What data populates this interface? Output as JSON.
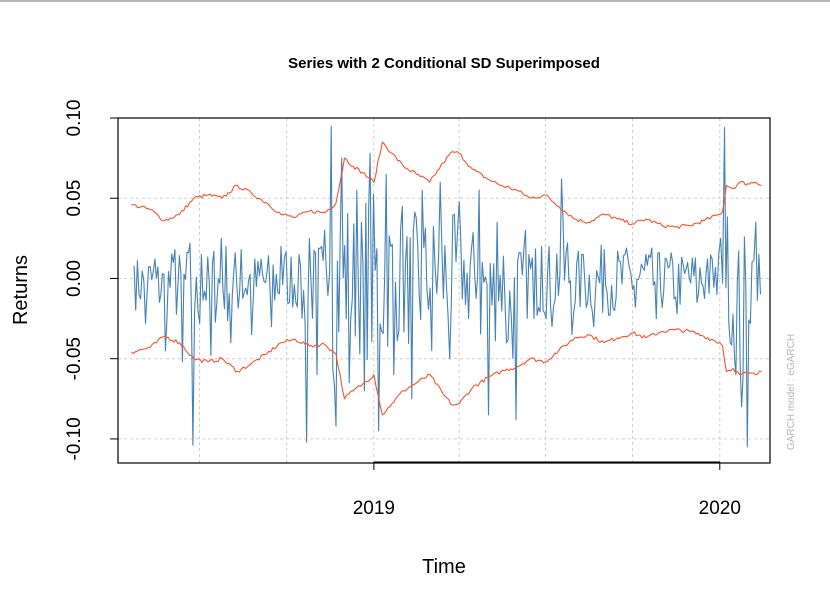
{
  "chart_data": {
    "type": "line",
    "title": "Series with 2 Conditional SD Superimposed",
    "xlabel": "Time",
    "ylabel": "Returns",
    "watermark": "GARCH model : eGARCH",
    "xlim": [
      "2018-04-06",
      "2020-02-23"
    ],
    "ylim": [
      -0.115,
      0.1
    ],
    "x_ticks": [
      {
        "date": "2019-01-01",
        "label": "2019"
      },
      {
        "date": "2020-01-01",
        "label": "2020"
      }
    ],
    "y_ticks": [
      {
        "value": 0.1,
        "label": "0.10"
      },
      {
        "value": 0.05,
        "label": "0.05"
      },
      {
        "value": 0.0,
        "label": "0.00"
      },
      {
        "value": -0.05,
        "label": "-0.05"
      },
      {
        "value": -0.1,
        "label": "-0.10"
      }
    ],
    "grid": true,
    "grid_x_dates": [
      "2018-07-01",
      "2018-10-01",
      "2019-01-01",
      "2019-04-01",
      "2019-07-01",
      "2019-10-01",
      "2020-01-01"
    ],
    "series": [
      {
        "role": "returns",
        "color": "#4682b4",
        "x": [
          "2018-04-23",
          "2018-05-05",
          "2018-05-15",
          "2018-05-26",
          "2018-06-05",
          "2018-06-13",
          "2018-06-21",
          "2018-06-24",
          "2018-07-03",
          "2018-07-13",
          "2018-07-24",
          "2018-08-03",
          "2018-08-14",
          "2018-08-25",
          "2018-09-04",
          "2018-09-15",
          "2018-09-25",
          "2018-10-04",
          "2018-10-14",
          "2018-10-22",
          "2018-10-25",
          "2018-11-02",
          "2018-11-10",
          "2018-11-17",
          "2018-11-22",
          "2018-11-28",
          "2018-12-06",
          "2018-12-14",
          "2018-12-22",
          "2018-12-28",
          "2019-01-06",
          "2019-01-14",
          "2019-01-22",
          "2019-01-31",
          "2019-02-10",
          "2019-02-21",
          "2019-03-03",
          "2019-03-12",
          "2019-03-22",
          "2019-04-01",
          "2019-04-11",
          "2019-04-22",
          "2019-05-02",
          "2019-05-11",
          "2019-05-21",
          "2019-05-31",
          "2019-06-10",
          "2019-06-19",
          "2019-06-27",
          "2019-07-08",
          "2019-07-18",
          "2019-07-29",
          "2019-08-10",
          "2019-08-21",
          "2019-09-01",
          "2019-09-12",
          "2019-09-23",
          "2019-10-04",
          "2019-10-15",
          "2019-10-26",
          "2019-11-06",
          "2019-11-17",
          "2019-11-28",
          "2019-12-08",
          "2019-12-19",
          "2019-12-29",
          "2020-01-02",
          "2020-01-06",
          "2020-01-12",
          "2020-01-18",
          "2020-01-24",
          "2020-01-30",
          "2020-02-04",
          "2020-02-08",
          "2020-02-13"
        ],
        "values": [
          0.008,
          -0.028,
          0.012,
          -0.045,
          0.018,
          -0.052,
          0.022,
          -0.104,
          0.015,
          -0.048,
          0.025,
          -0.04,
          0.018,
          -0.035,
          0.012,
          -0.03,
          0.02,
          -0.015,
          0.015,
          -0.102,
          0.025,
          -0.06,
          0.03,
          0.095,
          -0.092,
          0.075,
          -0.065,
          0.055,
          -0.07,
          0.078,
          -0.095,
          0.065,
          -0.06,
          0.045,
          -0.075,
          0.055,
          -0.045,
          0.06,
          -0.05,
          0.048,
          -0.025,
          0.055,
          -0.085,
          0.035,
          -0.04,
          -0.088,
          0.03,
          -0.025,
          0.02,
          -0.03,
          0.062,
          -0.035,
          0.015,
          -0.03,
          0.018,
          -0.02,
          0.015,
          -0.018,
          0.015,
          -0.025,
          0.012,
          -0.022,
          0.01,
          -0.015,
          0.012,
          -0.01,
          0.025,
          0.094,
          -0.04,
          -0.06,
          -0.08,
          -0.105,
          0.01,
          0.035,
          -0.01
        ]
      },
      {
        "role": "upper_2sd",
        "color": "#f4552f",
        "x": [
          "2018-04-20",
          "2018-05-10",
          "2018-05-25",
          "2018-06-10",
          "2018-06-25",
          "2018-07-10",
          "2018-07-25",
          "2018-08-10",
          "2018-08-25",
          "2018-09-10",
          "2018-09-25",
          "2018-10-10",
          "2018-10-25",
          "2018-11-10",
          "2018-11-22",
          "2018-12-01",
          "2018-12-10",
          "2018-12-20",
          "2019-01-01",
          "2019-01-10",
          "2019-01-20",
          "2019-02-01",
          "2019-02-15",
          "2019-03-01",
          "2019-03-15",
          "2019-03-25",
          "2019-04-01",
          "2019-04-15",
          "2019-05-01",
          "2019-05-15",
          "2019-06-01",
          "2019-06-15",
          "2019-07-01",
          "2019-07-15",
          "2019-08-01",
          "2019-08-15",
          "2019-09-01",
          "2019-09-15",
          "2019-10-01",
          "2019-10-15",
          "2019-11-01",
          "2019-11-15",
          "2019-12-01",
          "2019-12-15",
          "2020-01-01",
          "2020-01-04",
          "2020-01-08",
          "2020-01-15",
          "2020-01-22",
          "2020-01-30",
          "2020-02-08",
          "2020-02-14"
        ],
        "values": [
          0.046,
          0.043,
          0.036,
          0.04,
          0.05,
          0.052,
          0.05,
          0.058,
          0.053,
          0.047,
          0.04,
          0.038,
          0.042,
          0.041,
          0.047,
          0.075,
          0.07,
          0.066,
          0.06,
          0.085,
          0.078,
          0.07,
          0.065,
          0.06,
          0.072,
          0.079,
          0.078,
          0.068,
          0.062,
          0.058,
          0.055,
          0.05,
          0.052,
          0.045,
          0.037,
          0.035,
          0.04,
          0.037,
          0.034,
          0.037,
          0.033,
          0.032,
          0.033,
          0.036,
          0.04,
          0.042,
          0.058,
          0.056,
          0.06,
          0.059,
          0.06,
          0.058
        ]
      },
      {
        "role": "lower_2sd",
        "color": "#f4552f",
        "x": [
          "2018-04-20",
          "2018-05-10",
          "2018-05-25",
          "2018-06-10",
          "2018-06-25",
          "2018-07-10",
          "2018-07-25",
          "2018-08-10",
          "2018-08-25",
          "2018-09-10",
          "2018-09-25",
          "2018-10-10",
          "2018-10-25",
          "2018-11-10",
          "2018-11-22",
          "2018-12-01",
          "2018-12-10",
          "2018-12-20",
          "2019-01-01",
          "2019-01-10",
          "2019-01-20",
          "2019-02-01",
          "2019-02-15",
          "2019-03-01",
          "2019-03-15",
          "2019-03-25",
          "2019-04-01",
          "2019-04-15",
          "2019-05-01",
          "2019-05-15",
          "2019-06-01",
          "2019-06-15",
          "2019-07-01",
          "2019-07-15",
          "2019-08-01",
          "2019-08-15",
          "2019-09-01",
          "2019-09-15",
          "2019-10-01",
          "2019-10-15",
          "2019-11-01",
          "2019-11-15",
          "2019-12-01",
          "2019-12-15",
          "2020-01-01",
          "2020-01-04",
          "2020-01-08",
          "2020-01-15",
          "2020-01-22",
          "2020-01-30",
          "2020-02-08",
          "2020-02-14"
        ],
        "values": [
          -0.046,
          -0.043,
          -0.036,
          -0.04,
          -0.05,
          -0.052,
          -0.05,
          -0.058,
          -0.053,
          -0.047,
          -0.04,
          -0.038,
          -0.042,
          -0.041,
          -0.047,
          -0.075,
          -0.07,
          -0.066,
          -0.06,
          -0.085,
          -0.078,
          -0.07,
          -0.065,
          -0.06,
          -0.072,
          -0.079,
          -0.078,
          -0.068,
          -0.062,
          -0.058,
          -0.055,
          -0.05,
          -0.052,
          -0.045,
          -0.037,
          -0.035,
          -0.04,
          -0.037,
          -0.034,
          -0.037,
          -0.033,
          -0.032,
          -0.033,
          -0.036,
          -0.04,
          -0.042,
          -0.058,
          -0.056,
          -0.06,
          -0.059,
          -0.06,
          -0.058
        ]
      }
    ]
  }
}
